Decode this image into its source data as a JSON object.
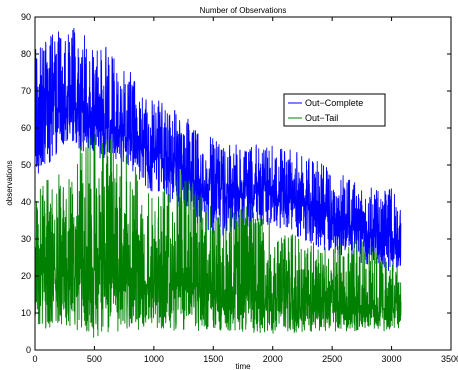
{
  "chart_data": {
    "type": "line",
    "title": "Number of Observations",
    "xlabel": "time",
    "ylabel": "observations",
    "xlim": [
      0,
      3500
    ],
    "ylim": [
      0,
      90
    ],
    "xticks": [
      0,
      500,
      1000,
      1500,
      2000,
      2500,
      3000,
      3500
    ],
    "yticks": [
      0,
      10,
      20,
      30,
      40,
      50,
      60,
      70,
      80,
      90
    ],
    "grid": false,
    "legend_position": "upper-right-inside",
    "series": [
      {
        "name": "Out−Complete",
        "color": "#0000ff",
        "x": [
          0,
          250,
          500,
          750,
          1000,
          1250,
          1500,
          1750,
          2000,
          2250,
          2500,
          2750,
          3000,
          3080
        ],
        "low": [
          45,
          56,
          52,
          50,
          42,
          38,
          30,
          33,
          34,
          30,
          26,
          23,
          21,
          22
        ],
        "mean": [
          67,
          66,
          63,
          58,
          53,
          48,
          44,
          44,
          43,
          40,
          36,
          32,
          31,
          31
        ],
        "high": [
          82,
          88,
          85,
          77,
          68,
          64,
          57,
          55,
          56,
          53,
          50,
          44,
          44,
          38
        ]
      },
      {
        "name": "Out−Tail",
        "color": "#008000",
        "x": [
          0,
          250,
          500,
          750,
          1000,
          1250,
          1500,
          1750,
          2000,
          2250,
          2500,
          2750,
          3000,
          3080
        ],
        "low": [
          5,
          7,
          3,
          5,
          6,
          5,
          5,
          5,
          4,
          5,
          5,
          5,
          5,
          5
        ],
        "mean": [
          20,
          22,
          21,
          20,
          18,
          18,
          16,
          15,
          14,
          13,
          12,
          11,
          11,
          11
        ],
        "high": [
          45,
          50,
          60,
          56,
          40,
          50,
          38,
          42,
          35,
          30,
          28,
          30,
          24,
          22
        ]
      }
    ]
  }
}
